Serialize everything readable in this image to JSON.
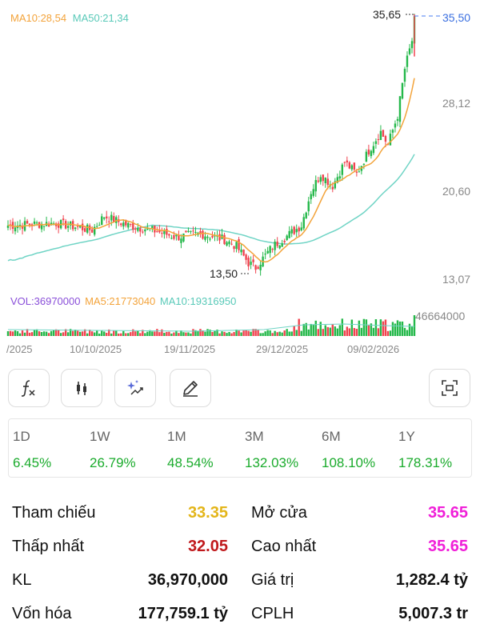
{
  "legend_price": {
    "ma10_label": "MA10:28,54",
    "ma50_label": "MA50:21,34"
  },
  "legend_volume": {
    "vol_label": "VOL:36970000",
    "ma5_label": "MA5:21773040",
    "ma10_label": "MA10:19316950"
  },
  "colors": {
    "up": "#24b84a",
    "down": "#f0434f",
    "ma10": "#f3a33a",
    "ma50": "#6fd4c5",
    "price_line": "#4a7df0",
    "performance_green": "#1aab2c",
    "reference_yellow": "#e3b519",
    "low_red": "#c0191c",
    "open_magenta": "#f01fd8"
  },
  "chart_data": {
    "type": "candlestick",
    "y_ticks": [
      "35,50",
      "28,12",
      "20,60",
      "13,07"
    ],
    "ylim": [
      13.07,
      35.65
    ],
    "high_annotation": "35,65",
    "low_annotation": "13,50",
    "last_price": "35,50",
    "volume_axis_label": "46664000",
    "x_tick_labels": [
      "/2025",
      "10/10/2025",
      "19/11/2025",
      "29/12/2025",
      "09/02/2026"
    ]
  },
  "tools": [
    {
      "name": "indicator-fx-icon"
    },
    {
      "name": "candlestick-icon"
    },
    {
      "name": "ai-sparkle-icon"
    },
    {
      "name": "draw-pencil-icon"
    },
    {
      "name": "fullscreen-icon"
    }
  ],
  "performance": [
    {
      "label": "1D",
      "value": "6.45%"
    },
    {
      "label": "1W",
      "value": "26.79%"
    },
    {
      "label": "1M",
      "value": "48.54%"
    },
    {
      "label": "3M",
      "value": "132.03%"
    },
    {
      "label": "6M",
      "value": "108.10%"
    },
    {
      "label": "1Y",
      "value": "178.31%"
    }
  ],
  "stats": {
    "reference_label": "Tham chiếu",
    "reference_value": "33.35",
    "open_label": "Mở cửa",
    "open_value": "35.65",
    "low_label": "Thấp nhất",
    "low_value": "32.05",
    "high_label": "Cao nhất",
    "high_value": "35.65",
    "volume_label": "KL",
    "volume_value": "36,970,000",
    "turnover_label": "Giá trị",
    "turnover_value": "1,282.4 tỷ",
    "market_cap_label": "Vốn hóa",
    "market_cap_value": "177,759.1 tỷ",
    "shares_label": "CPLH",
    "shares_value": "5,007.3 tr"
  }
}
